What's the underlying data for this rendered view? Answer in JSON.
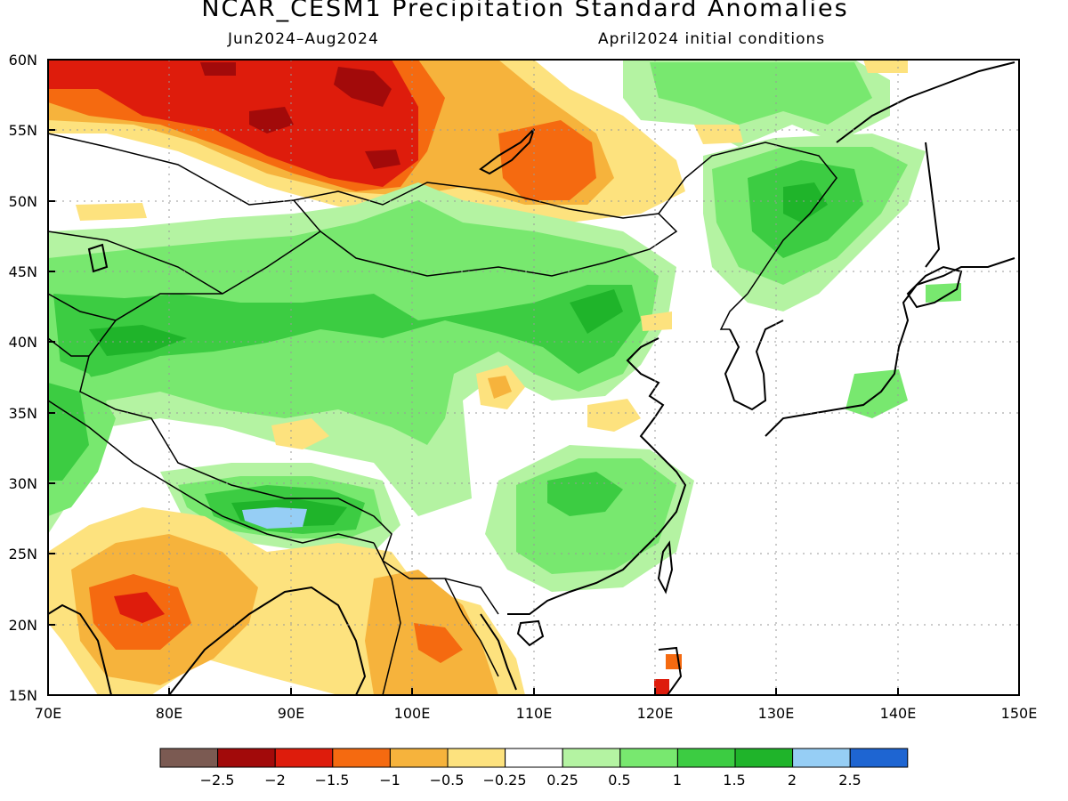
{
  "title": "NCAR_CESM1 Precipitation Standard Anomalies",
  "subtitle_left": "Jun2024–Aug2024",
  "subtitle_right": "April2024 initial conditions",
  "map": {
    "lon_range": [
      70,
      150
    ],
    "lat_range": [
      15,
      60
    ],
    "x_ticks": [
      "70E",
      "80E",
      "90E",
      "100E",
      "110E",
      "120E",
      "130E",
      "140E",
      "150E"
    ],
    "y_ticks": [
      "15N",
      "20N",
      "25N",
      "30N",
      "35N",
      "40N",
      "45N",
      "50N",
      "55N",
      "60N"
    ],
    "grid": "dotted"
  },
  "legend": {
    "colors": [
      "#7b5a52",
      "#a20a0a",
      "#de1c0c",
      "#f56a10",
      "#f6b33c",
      "#fde27e",
      "#ffffff",
      "#b4f3a2",
      "#78e86f",
      "#3ccc42",
      "#1fb42a",
      "#96cef5",
      "#1e65d2"
    ],
    "labels": [
      "−2.5",
      "−2",
      "−1.5",
      "−1",
      "−0.5",
      "−0.25",
      "0.25",
      "0.5",
      "1",
      "1.5",
      "2",
      "2.5"
    ]
  }
}
